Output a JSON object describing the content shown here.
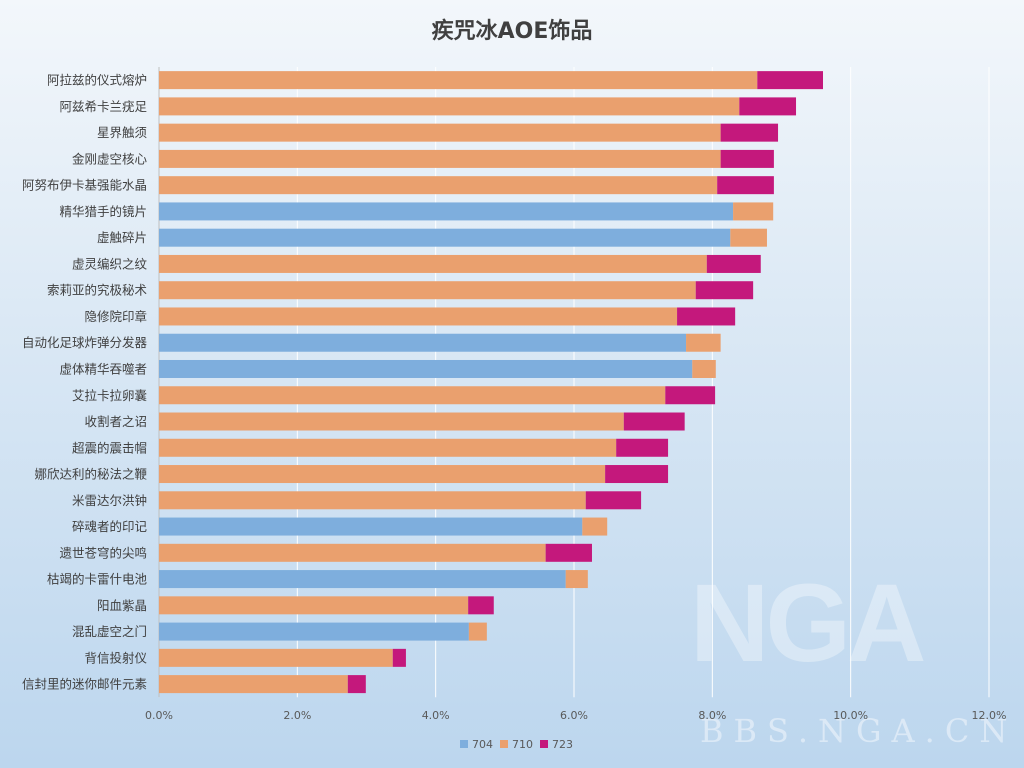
{
  "chart_data": {
    "type": "bar",
    "orientation": "horizontal",
    "stacked": true,
    "title": "疾咒冰AOE饰品",
    "xlabel": "",
    "ylabel": "",
    "xlim": [
      0,
      12
    ],
    "x_ticks": [
      "0.0%",
      "2.0%",
      "4.0%",
      "6.0%",
      "8.0%",
      "10.0%",
      "12.0%"
    ],
    "grid": "vertical",
    "legend_position": "bottom",
    "categories": [
      "阿拉兹的仪式熔炉",
      "阿兹希卡兰疣足",
      "星界触须",
      "金刚虚空核心",
      "阿努布伊卡基强能水晶",
      "精华猎手的镜片",
      "虚触碎片",
      "虚灵编织之纹",
      "索莉亚的究极秘术",
      "隐修院印章",
      "自动化足球炸弹分发器",
      "虚体精华吞噬者",
      "艾拉卡拉卵囊",
      "收割者之诏",
      "超震的震击帽",
      "娜欣达利的秘法之鞭",
      "米雷达尔洪钟",
      "碎魂者的印记",
      "遗世苍穹的尖鸣",
      "枯竭的卡雷什电池",
      "阳血紫晶",
      "混乱虚空之门",
      "背信投射仪",
      "信封里的迷你邮件元素"
    ],
    "series": [
      {
        "name": "704",
        "color": "#7eaedd",
        "values": [
          0,
          0,
          0,
          0,
          0,
          8.3,
          8.26,
          0,
          0,
          0,
          7.62,
          7.71,
          0,
          0,
          0,
          0,
          0,
          6.12,
          0,
          5.88,
          0,
          4.48,
          0,
          0
        ]
      },
      {
        "name": "710",
        "color": "#eaa06e",
        "values": [
          8.65,
          8.39,
          8.12,
          8.12,
          8.07,
          0.58,
          0.53,
          7.92,
          7.76,
          7.49,
          0.5,
          0.34,
          7.32,
          6.72,
          6.61,
          6.45,
          6.17,
          0.36,
          5.59,
          0.32,
          4.47,
          0.26,
          3.38,
          2.73
        ]
      },
      {
        "name": "723",
        "color": "#c4187c",
        "values": [
          0.95,
          0.82,
          0.83,
          0.77,
          0.82,
          0,
          0,
          0.78,
          0.83,
          0.84,
          0,
          0,
          0.72,
          0.88,
          0.75,
          0.91,
          0.8,
          0,
          0.67,
          0,
          0.37,
          0,
          0.19,
          0.26
        ]
      }
    ]
  },
  "watermark": {
    "logo": "NGA",
    "site": "BBS.NGA.CN"
  }
}
